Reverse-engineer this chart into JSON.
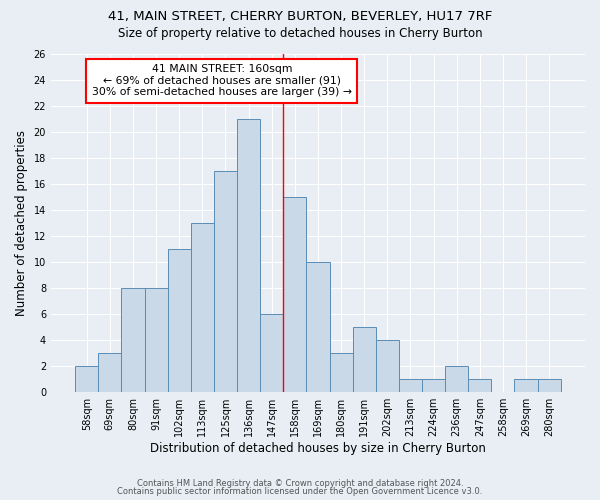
{
  "title": "41, MAIN STREET, CHERRY BURTON, BEVERLEY, HU17 7RF",
  "subtitle": "Size of property relative to detached houses in Cherry Burton",
  "xlabel": "Distribution of detached houses by size in Cherry Burton",
  "ylabel": "Number of detached properties",
  "categories": [
    "58sqm",
    "69sqm",
    "80sqm",
    "91sqm",
    "102sqm",
    "113sqm",
    "125sqm",
    "136sqm",
    "147sqm",
    "158sqm",
    "169sqm",
    "180sqm",
    "191sqm",
    "202sqm",
    "213sqm",
    "224sqm",
    "236sqm",
    "247sqm",
    "258sqm",
    "269sqm",
    "280sqm"
  ],
  "values": [
    2,
    3,
    8,
    8,
    11,
    13,
    17,
    21,
    6,
    15,
    10,
    3,
    5,
    4,
    1,
    1,
    2,
    1,
    0,
    1,
    1
  ],
  "bar_color": "#c9d9e8",
  "bar_edge_color": "#5a8db5",
  "annotation_box_text": "41 MAIN STREET: 160sqm\n← 69% of detached houses are smaller (91)\n30% of semi-detached houses are larger (39) →",
  "redline_x": 8.5,
  "ylim": [
    0,
    26
  ],
  "yticks": [
    0,
    2,
    4,
    6,
    8,
    10,
    12,
    14,
    16,
    18,
    20,
    22,
    24,
    26
  ],
  "background_color": "#e8eef4",
  "grid_color": "#ffffff",
  "footer_line1": "Contains HM Land Registry data © Crown copyright and database right 2024.",
  "footer_line2": "Contains public sector information licensed under the Open Government Licence v3.0."
}
